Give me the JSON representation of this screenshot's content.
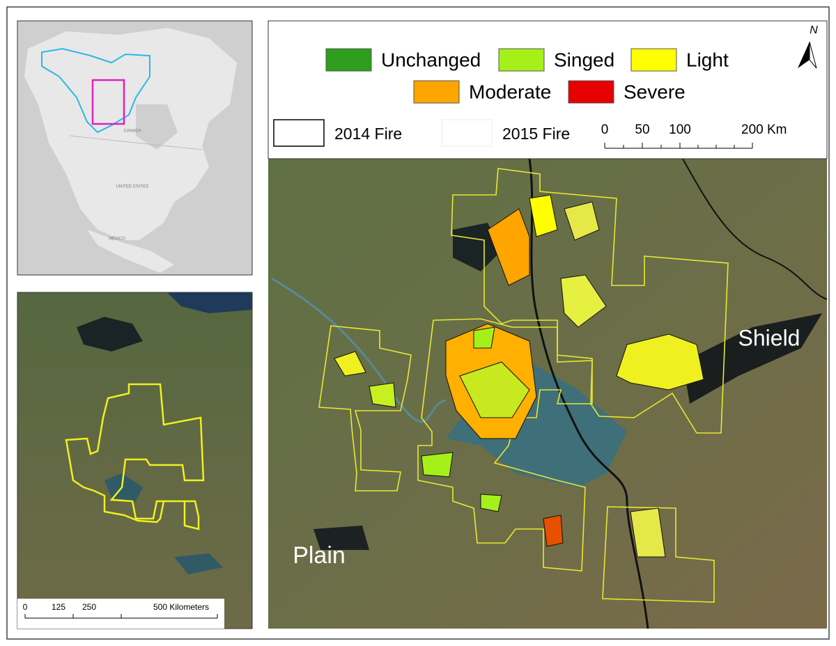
{
  "inset_map": {
    "labels": [
      "CANADA",
      "UNITED STATES",
      "MÉXICO"
    ]
  },
  "legend": {
    "classes": [
      {
        "label": "Unchanged",
        "color": "#2e9e1c"
      },
      {
        "label": "Singed",
        "color": "#a6f01a"
      },
      {
        "label": "Light",
        "color": "#ffff00"
      },
      {
        "label": "Moderate",
        "color": "#ffa500"
      },
      {
        "label": "Severe",
        "color": "#e60000"
      }
    ],
    "fires": [
      {
        "label": "2014 Fire",
        "color": "#000000"
      },
      {
        "label": "2015 Fire",
        "color": "#f2f2f2"
      }
    ],
    "north": "N"
  },
  "main_scale": {
    "ticks": [
      "0",
      "50",
      "100",
      "200 Km"
    ]
  },
  "region_labels": {
    "shield": "Shield",
    "plain": "Plain"
  },
  "overview_scale": {
    "ticks": [
      "0",
      "125",
      "250",
      "500 Kilometers"
    ]
  }
}
